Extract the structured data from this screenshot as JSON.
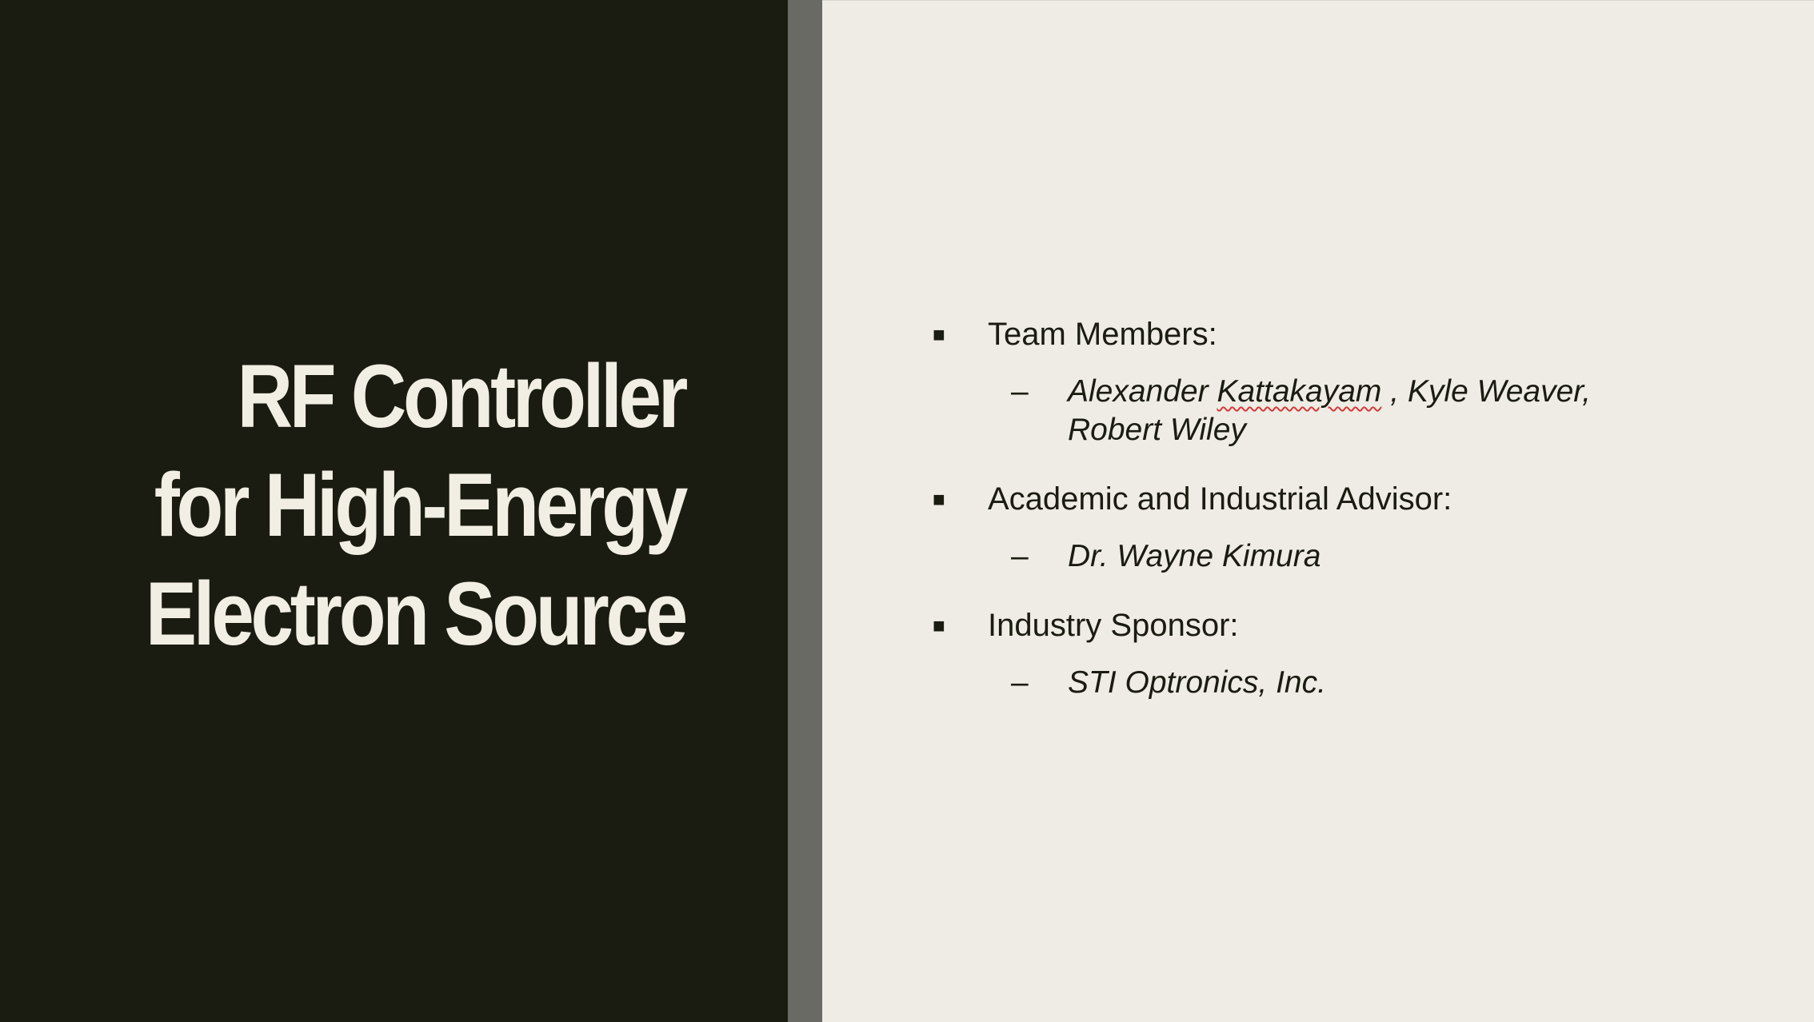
{
  "slide": {
    "title_lines": [
      "RF Controller",
      "for High-Energy",
      "Electron Source"
    ],
    "colors": {
      "left_panel": "#1b1c11",
      "divider": "#686a63",
      "right_panel": "#eeece4",
      "title_text": "#f1eee3",
      "body_text": "#1b1c11"
    },
    "bullet_icon": "square-bullet-icon",
    "sub_bullet_icon": "dash",
    "sections": [
      {
        "bullet": "■",
        "label": "Team Members:",
        "sub_marker": "–",
        "items": {
          "part1": "Alexander ",
          "flagged_word": "Kattakayam",
          "part2": " , Kyle Weaver, Robert Wiley"
        }
      },
      {
        "bullet": "■",
        "label": "Academic and Industrial Advisor:",
        "sub_marker": "–",
        "item": "Dr. Wayne Kimura"
      },
      {
        "bullet": "■",
        "label": "Industry Sponsor:",
        "sub_marker": "–",
        "item": "STI Optronics, Inc."
      }
    ]
  }
}
